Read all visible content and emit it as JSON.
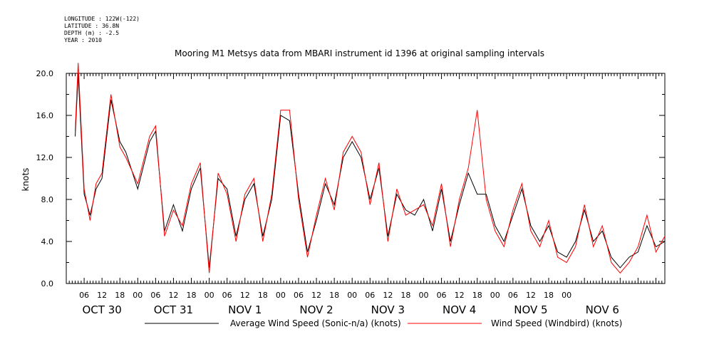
{
  "header": {
    "meta": [
      "LONGITUDE : 122W(-122)",
      "LATITUDE : 36.8N",
      "DEPTH (m) : -2.5",
      "YEAR : 2010"
    ],
    "title": "Mooring M1 Metsys data from MBARI instrument id 1396 at original sampling intervals"
  },
  "chart_data": {
    "type": "line",
    "title": "Mooring M1 Metsys data from MBARI instrument id 1396 at original sampling intervals",
    "ylabel": "knots",
    "xlabel": "",
    "ylim": [
      0,
      20.0
    ],
    "y_ticks": [
      "0.0",
      "4.0",
      "8.0",
      "12.0",
      "16.0",
      "20.0"
    ],
    "x_range_hours": [
      -21,
      57
    ],
    "x_hour_ticks": [
      "06",
      "12",
      "18",
      "00",
      "06",
      "12",
      "18",
      "00",
      "06",
      "12",
      "18",
      "00",
      "06",
      "12",
      "18",
      "00",
      "06",
      "12",
      "18",
      "00",
      "06",
      "12",
      "18",
      "00",
      "06",
      "12",
      "18",
      "00"
    ],
    "x_day_labels": [
      "OCT 30",
      "OCT 31",
      "NOV  1",
      "NOV  2",
      "NOV  3",
      "NOV  4",
      "NOV  5",
      "NOV  6"
    ],
    "grid": false,
    "legend_position": "bottom",
    "x_points_label": "hours since 2010-10-30 00:00",
    "x": [
      3,
      4,
      6,
      8,
      10,
      12,
      15,
      18,
      20,
      24,
      28,
      30,
      33,
      36,
      39,
      42,
      45,
      48,
      51,
      54,
      57,
      60,
      63,
      66,
      69,
      72,
      75,
      78,
      81,
      84,
      87,
      90,
      93,
      96,
      99,
      102,
      105,
      108,
      111,
      114,
      117,
      120,
      123,
      126,
      129,
      132,
      135,
      138,
      141,
      144,
      147,
      150,
      153,
      156,
      159,
      162,
      165,
      168,
      171,
      174,
      177,
      180,
      183,
      186,
      189,
      192,
      195,
      198,
      201
    ],
    "series": [
      {
        "name": "Average Wind Speed (Sonic-n/a) (knots)",
        "color": "#000000",
        "values": [
          14.0,
          20.0,
          8.5,
          6.5,
          9.0,
          10.0,
          17.5,
          13.5,
          12.5,
          9.0,
          13.5,
          14.5,
          5.0,
          7.5,
          5.0,
          9.0,
          11.0,
          1.5,
          10.0,
          9.0,
          4.5,
          8.0,
          9.5,
          4.5,
          8.0,
          16.0,
          15.5,
          8.5,
          3.0,
          6.0,
          9.5,
          7.5,
          12.0,
          13.5,
          12.0,
          8.0,
          11.0,
          4.5,
          8.5,
          7.0,
          6.5,
          8.0,
          5.0,
          9.0,
          4.0,
          7.5,
          10.5,
          8.5,
          8.5,
          5.5,
          4.0,
          6.5,
          9.0,
          5.5,
          4.0,
          5.5,
          3.0,
          2.5,
          4.0,
          7.0,
          4.0,
          5.0,
          2.5,
          1.5,
          2.5,
          3.0,
          5.5,
          3.5,
          4.0
        ]
      },
      {
        "name": "Wind Speed (Windbird) (knots)",
        "color": "#ff0000",
        "values": [
          14.5,
          21.0,
          9.0,
          6.0,
          9.5,
          10.5,
          18.0,
          13.0,
          12.0,
          9.5,
          14.0,
          15.0,
          4.5,
          7.0,
          5.5,
          9.5,
          11.5,
          1.0,
          10.5,
          8.5,
          4.0,
          8.5,
          10.0,
          4.0,
          8.5,
          16.5,
          16.5,
          8.0,
          2.5,
          6.5,
          10.0,
          7.0,
          12.5,
          14.0,
          12.5,
          7.5,
          11.5,
          4.0,
          9.0,
          6.5,
          7.0,
          7.5,
          5.5,
          9.5,
          3.5,
          8.0,
          11.0,
          16.5,
          8.0,
          5.0,
          3.5,
          7.0,
          9.5,
          5.0,
          3.5,
          6.0,
          2.5,
          2.0,
          3.5,
          7.5,
          3.5,
          5.5,
          2.0,
          1.0,
          2.0,
          3.5,
          6.5,
          3.0,
          4.5
        ]
      }
    ]
  },
  "legend": {
    "series1_label": "Average Wind Speed (Sonic-n/a) (knots)",
    "series2_label": "Wind Speed (Windbird) (knots)"
  }
}
